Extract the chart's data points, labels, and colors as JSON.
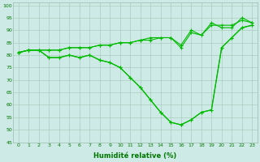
{
  "xlabel": "Humidité relative (%)",
  "background_color": "#ceeae6",
  "grid_color": "#aaccbb",
  "line_color": "#00bb00",
  "xlim": [
    -0.5,
    23.5
  ],
  "ylim": [
    45,
    101
  ],
  "yticks": [
    45,
    50,
    55,
    60,
    65,
    70,
    75,
    80,
    85,
    90,
    95,
    100
  ],
  "xticks": [
    0,
    1,
    2,
    3,
    4,
    5,
    6,
    7,
    8,
    9,
    10,
    11,
    12,
    13,
    14,
    15,
    16,
    17,
    18,
    19,
    20,
    21,
    22,
    23
  ],
  "series_upper1": [
    81,
    82,
    82,
    82,
    82,
    83,
    83,
    83,
    84,
    84,
    85,
    85,
    86,
    86,
    87,
    87,
    83,
    89,
    88,
    93,
    91,
    91,
    95,
    93
  ],
  "series_upper2": [
    81,
    82,
    82,
    82,
    82,
    83,
    83,
    83,
    84,
    84,
    85,
    85,
    86,
    87,
    87,
    87,
    84,
    90,
    88,
    92,
    92,
    92,
    94,
    93
  ],
  "series_lower": [
    81,
    82,
    82,
    79,
    79,
    80,
    79,
    80,
    78,
    77,
    75,
    71,
    67,
    62,
    57,
    53,
    52,
    54,
    57,
    58,
    83,
    87,
    91,
    92
  ],
  "series_lower2": [
    81,
    82,
    82,
    79,
    79,
    80,
    79,
    80,
    78,
    77,
    75,
    71,
    67,
    62,
    57,
    53,
    52,
    54,
    57,
    58,
    83,
    87,
    91,
    92
  ]
}
